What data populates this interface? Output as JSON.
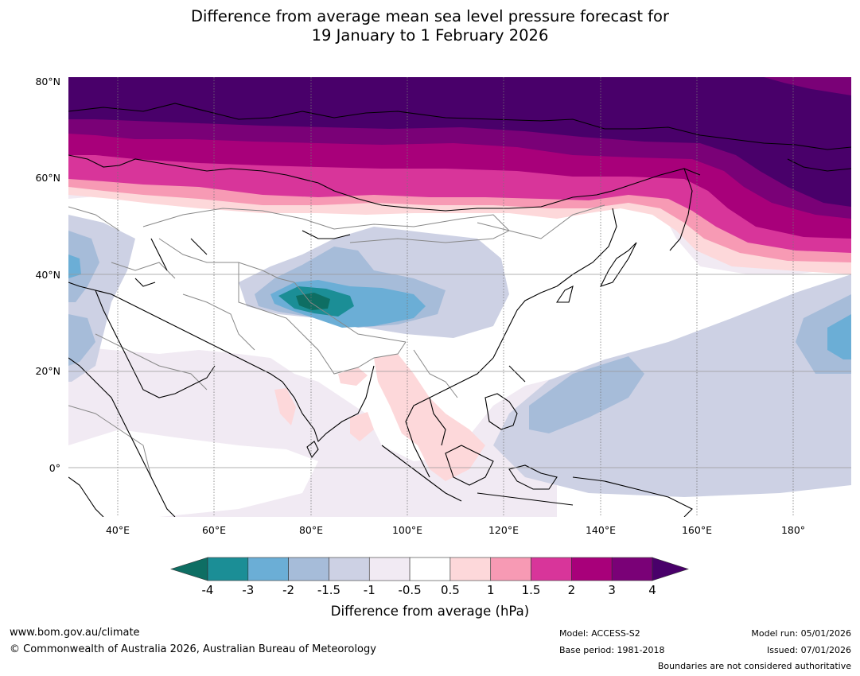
{
  "title": {
    "line1": "Difference from average mean sea level pressure forecast for",
    "line2": "19 January to 1 February 2026"
  },
  "axes": {
    "lat_labels": [
      "80°N",
      "60°N",
      "40°N",
      "20°N",
      "0°"
    ],
    "lon_labels": [
      "40°E",
      "60°E",
      "80°E",
      "100°E",
      "120°E",
      "140°E",
      "160°E",
      "180°"
    ]
  },
  "colorbar": {
    "ticks": [
      "-4",
      "-3",
      "-2",
      "-1.5",
      "-1",
      "-0.5",
      "0.5",
      "1",
      "1.5",
      "2",
      "3",
      "4"
    ],
    "colors": [
      "#0e6e63",
      "#1b8e96",
      "#6baed6",
      "#a6bcd9",
      "#cdd1e4",
      "#f1eaf3",
      "#ffffff",
      "#fdd8da",
      "#f79ab4",
      "#d8359a",
      "#a8007a",
      "#7a0177",
      "#49006a"
    ],
    "title": "Difference from average (hPa)"
  },
  "footer": {
    "url": "www.bom.gov.au/climate",
    "copyright": "© Commonwealth of Australia 2026, Australian Bureau of Meteorology",
    "model": "Model: ACCESS-S2",
    "base_period": "Base period: 1981-2018",
    "model_run": "Model run: 05/01/2026",
    "issued": "Issued: 07/01/2026",
    "disclaimer": "Boundaries are not considered authoritative"
  }
}
